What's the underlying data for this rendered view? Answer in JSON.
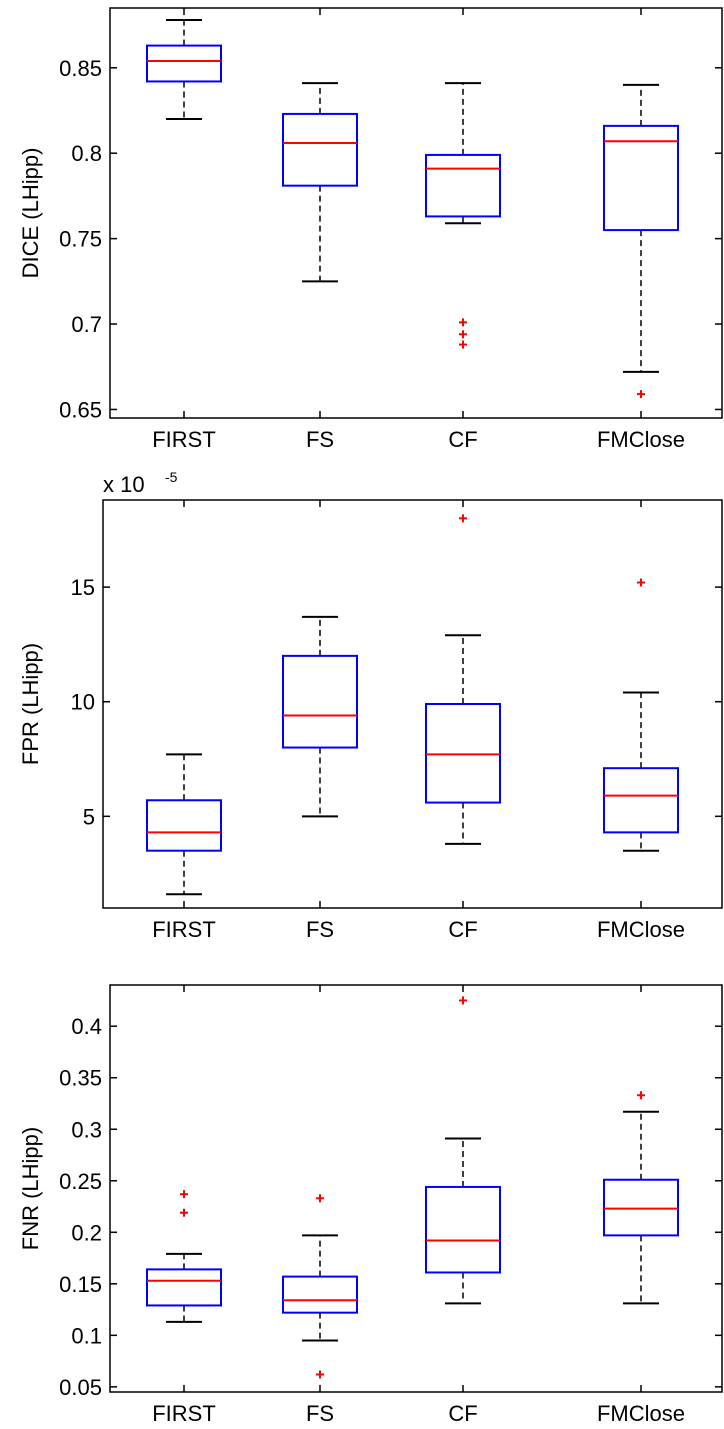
{
  "chart_data": [
    {
      "type": "box",
      "ylabel": "DICE (LHipp)",
      "ylim": [
        0.645,
        0.885
      ],
      "yticks": [
        "0.65",
        "0.7",
        "0.75",
        "0.8",
        "0.85"
      ],
      "categories": [
        "FIRST",
        "FS",
        "CF",
        "FMClose"
      ],
      "boxes": [
        {
          "whisker_low": 0.82,
          "q1": 0.842,
          "median": 0.854,
          "q3": 0.863,
          "whisker_high": 0.878,
          "outliers": []
        },
        {
          "whisker_low": 0.725,
          "q1": 0.781,
          "median": 0.806,
          "q3": 0.823,
          "whisker_high": 0.841,
          "outliers": []
        },
        {
          "whisker_low": 0.759,
          "q1": 0.763,
          "median": 0.791,
          "q3": 0.799,
          "whisker_high": 0.841,
          "outliers": [
            0.701,
            0.694,
            0.688
          ]
        },
        {
          "whisker_low": 0.672,
          "q1": 0.755,
          "median": 0.807,
          "q3": 0.816,
          "whisker_high": 0.84,
          "outliers": [
            0.659
          ]
        }
      ]
    },
    {
      "type": "box",
      "ylabel": "FPR (LHipp)",
      "multiplier": "x 10",
      "multiplier_exp": "-5",
      "ylim": [
        1.0,
        18.8
      ],
      "yticks": [
        "5",
        "10",
        "15"
      ],
      "categories": [
        "FIRST",
        "FS",
        "CF",
        "FMClose"
      ],
      "boxes": [
        {
          "whisker_low": 1.6,
          "q1": 3.5,
          "median": 4.3,
          "q3": 5.7,
          "whisker_high": 7.7,
          "outliers": []
        },
        {
          "whisker_low": 5.0,
          "q1": 8.0,
          "median": 9.4,
          "q3": 12.0,
          "whisker_high": 13.7,
          "outliers": []
        },
        {
          "whisker_low": 3.8,
          "q1": 5.6,
          "median": 7.7,
          "q3": 9.9,
          "whisker_high": 12.9,
          "outliers": [
            18.0
          ]
        },
        {
          "whisker_low": 3.5,
          "q1": 4.3,
          "median": 5.9,
          "q3": 7.1,
          "whisker_high": 10.4,
          "outliers": [
            15.2
          ]
        }
      ]
    },
    {
      "type": "box",
      "ylabel": "FNR (LHipp)",
      "ylim": [
        0.045,
        0.44
      ],
      "yticks": [
        "0.05",
        "0.1",
        "0.15",
        "0.2",
        "0.25",
        "0.3",
        "0.35",
        "0.4"
      ],
      "categories": [
        "FIRST",
        "FS",
        "CF",
        "FMClose"
      ],
      "boxes": [
        {
          "whisker_low": 0.113,
          "q1": 0.129,
          "median": 0.153,
          "q3": 0.164,
          "whisker_high": 0.179,
          "outliers": [
            0.237,
            0.219
          ]
        },
        {
          "whisker_low": 0.095,
          "q1": 0.122,
          "median": 0.134,
          "q3": 0.157,
          "whisker_high": 0.197,
          "outliers": [
            0.233,
            0.062
          ]
        },
        {
          "whisker_low": 0.131,
          "q1": 0.161,
          "median": 0.192,
          "q3": 0.244,
          "whisker_high": 0.291,
          "outliers": [
            0.425
          ]
        },
        {
          "whisker_low": 0.131,
          "q1": 0.197,
          "median": 0.223,
          "q3": 0.251,
          "whisker_high": 0.317,
          "outliers": [
            0.333
          ]
        }
      ]
    }
  ],
  "colors": {
    "box": "#0000ff",
    "median": "#ff0000",
    "whisker": "#000000",
    "outlier": "#ff0000",
    "axes": "#000000"
  }
}
